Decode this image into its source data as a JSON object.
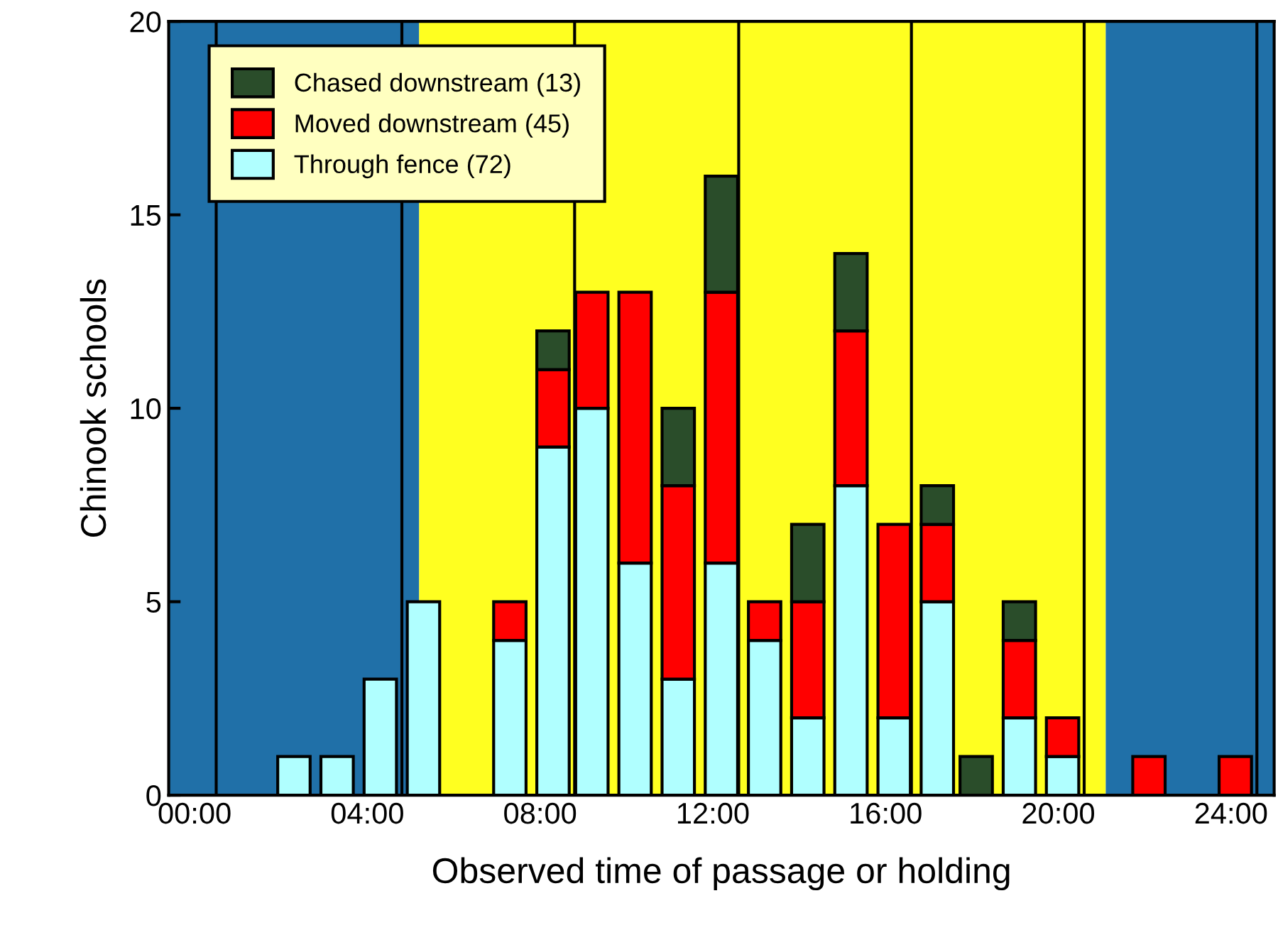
{
  "chart_data": {
    "type": "bar",
    "stacked": true,
    "xlabel": "Observed time of passage or holding",
    "ylabel": "Chinook schools",
    "x": [
      2.3,
      3.3,
      4.3,
      5.3,
      7.3,
      8.3,
      9.2,
      10.2,
      11.2,
      12.2,
      13.2,
      14.2,
      15.2,
      16.2,
      17.2,
      18.1,
      19.1,
      20.1,
      22.1,
      24.1
    ],
    "series": [
      {
        "name": "Through fence (72)",
        "color": "#b0ffff",
        "values": [
          1,
          1,
          3,
          5,
          4,
          9,
          10,
          6,
          3,
          6,
          4,
          2,
          8,
          2,
          5,
          0,
          2,
          1,
          0,
          0
        ]
      },
      {
        "name": "Moved downstream (45)",
        "color": "#ff0000",
        "values": [
          0,
          0,
          0,
          0,
          1,
          2,
          3,
          7,
          5,
          7,
          1,
          3,
          4,
          5,
          2,
          0,
          2,
          1,
          1,
          1
        ]
      },
      {
        "name": "Chased downstream (13)",
        "color": "#2a4d2a",
        "values": [
          0,
          0,
          0,
          0,
          0,
          1,
          0,
          0,
          2,
          3,
          0,
          2,
          2,
          0,
          1,
          1,
          1,
          0,
          0,
          0
        ]
      }
    ],
    "xlim": [
      -0.6,
      25
    ],
    "ylim": [
      0,
      20
    ],
    "xticks": [
      {
        "value": 0,
        "label": "00:00"
      },
      {
        "value": 4,
        "label": "04:00"
      },
      {
        "value": 8,
        "label": "08:00"
      },
      {
        "value": 12,
        "label": "12:00"
      },
      {
        "value": 16,
        "label": "16:00"
      },
      {
        "value": 20,
        "label": "20:00"
      },
      {
        "value": 24,
        "label": "24:00"
      }
    ],
    "yticks": [
      0,
      5,
      10,
      15,
      20
    ],
    "bands": [
      {
        "axis": "x",
        "from": -0.6,
        "to": 5.2,
        "color": "#2070a8"
      },
      {
        "axis": "x",
        "from": 5.2,
        "to": 21.1,
        "color": "#ffff20"
      },
      {
        "axis": "x",
        "from": 21.1,
        "to": 25,
        "color": "#2070a8"
      }
    ],
    "ref_lines": [
      {
        "axis": "x",
        "value": 0.5,
        "color": "#000000"
      },
      {
        "axis": "x",
        "value": 4.8,
        "color": "#000000"
      },
      {
        "axis": "x",
        "value": 8.8,
        "color": "#000000"
      },
      {
        "axis": "x",
        "value": 12.6,
        "color": "#000000"
      },
      {
        "axis": "x",
        "value": 16.6,
        "color": "#000000"
      },
      {
        "axis": "x",
        "value": 20.6,
        "color": "#000000"
      },
      {
        "axis": "x",
        "value": 24.6,
        "color": "#000000"
      }
    ],
    "grid": false,
    "legend": "top left"
  }
}
